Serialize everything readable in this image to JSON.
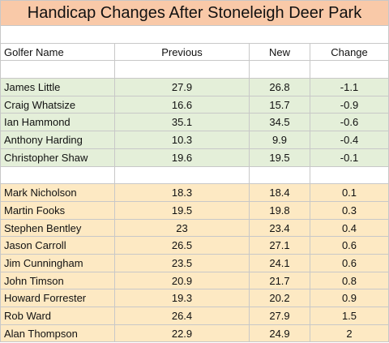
{
  "title": "Handicap Changes After Stoneleigh Deer Park",
  "headers": {
    "name": "Golfer Name",
    "previous": "Previous",
    "new": "New",
    "change": "Change"
  },
  "improved": [
    {
      "name": "James Little",
      "previous": "27.9",
      "new": "26.8",
      "change": "-1.1"
    },
    {
      "name": "Craig Whatsize",
      "previous": "16.6",
      "new": "15.7",
      "change": "-0.9"
    },
    {
      "name": "Ian Hammond",
      "previous": "35.1",
      "new": "34.5",
      "change": "-0.6"
    },
    {
      "name": "Anthony Harding",
      "previous": "10.3",
      "new": "9.9",
      "change": "-0.4"
    },
    {
      "name": "Christopher Shaw",
      "previous": "19.6",
      "new": "19.5",
      "change": "-0.1"
    }
  ],
  "worsened": [
    {
      "name": "Mark Nicholson",
      "previous": "18.3",
      "new": "18.4",
      "change": "0.1"
    },
    {
      "name": "Martin Fooks",
      "previous": "19.5",
      "new": "19.8",
      "change": "0.3"
    },
    {
      "name": "Stephen Bentley",
      "previous": "23",
      "new": "23.4",
      "change": "0.4"
    },
    {
      "name": "Jason Carroll",
      "previous": "26.5",
      "new": "27.1",
      "change": "0.6"
    },
    {
      "name": "Jim Cunningham",
      "previous": "23.5",
      "new": "24.1",
      "change": "0.6"
    },
    {
      "name": "John Timson",
      "previous": "20.9",
      "new": "21.7",
      "change": "0.8"
    },
    {
      "name": "Howard Forrester",
      "previous": "19.3",
      "new": "20.2",
      "change": "0.9"
    },
    {
      "name": "Rob Ward",
      "previous": "26.4",
      "new": "27.9",
      "change": "1.5"
    },
    {
      "name": "Alan Thompson",
      "previous": "22.9",
      "new": "24.9",
      "change": "2"
    }
  ],
  "colors": {
    "title_bg": "#f9c9a8",
    "improved_bg": "#e4efd9",
    "worsened_bg": "#fde9c3",
    "grid": "#c8c8c8"
  }
}
